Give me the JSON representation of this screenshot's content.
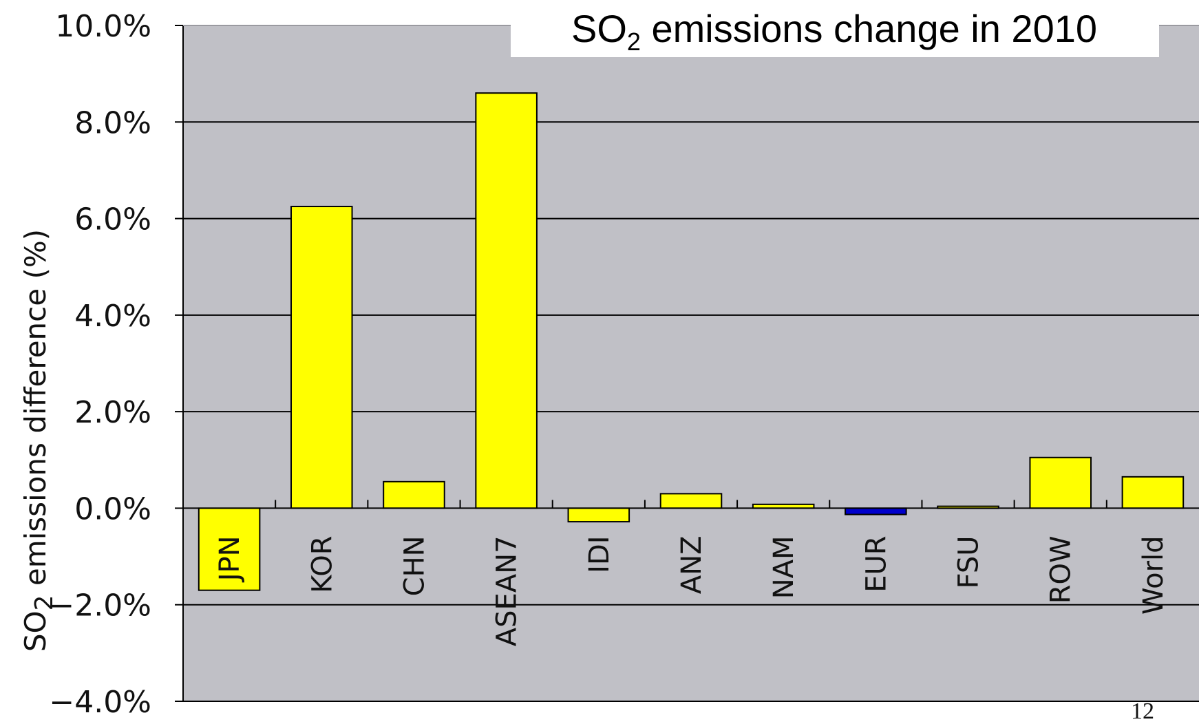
{
  "chart_data": {
    "type": "bar",
    "title_prefix": "SO",
    "title_sub": "2",
    "title_suffix": " emissions change in 2010",
    "ylabel_prefix": "SO",
    "ylabel_sub": "2",
    "ylabel_suffix": " emissions difference (%)",
    "xlabel": "",
    "ylim": [
      -4.0,
      10.0
    ],
    "yticks": [
      -4.0,
      -2.0,
      0.0,
      2.0,
      4.0,
      6.0,
      8.0,
      10.0
    ],
    "ytick_labels": [
      "−4.0%",
      "−2.0%",
      "0.0%",
      "2.0%",
      "4.0%",
      "6.0%",
      "8.0%",
      "10.0%"
    ],
    "categories": [
      "JPN",
      "KOR",
      "CHN",
      "ASEAN7",
      "IDI",
      "ANZ",
      "NAM",
      "EUR",
      "FSU",
      "ROW",
      "World"
    ],
    "values": [
      -1.7,
      6.25,
      0.55,
      8.6,
      -0.28,
      0.3,
      0.08,
      -0.13,
      0.04,
      1.05,
      0.65
    ],
    "bar_colors": [
      "#ffff00",
      "#ffff00",
      "#ffff00",
      "#ffff00",
      "#ffff00",
      "#ffff00",
      "#ffff00",
      "#0000cc",
      "#ffff00",
      "#ffff00",
      "#ffff00"
    ],
    "grid": true,
    "plot_background": "#c0c0c6"
  },
  "page_number": "12"
}
